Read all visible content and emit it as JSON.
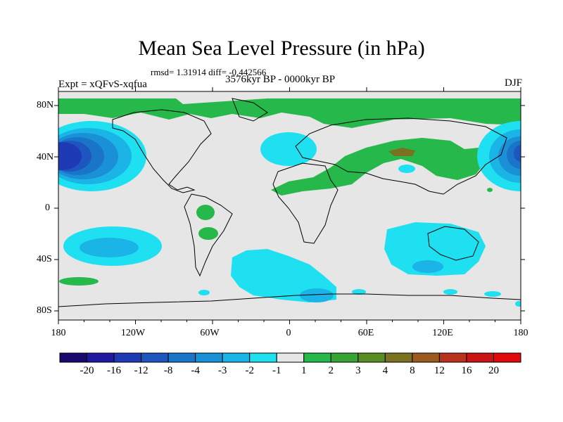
{
  "title": "Mean Sea Level Pressure (in hPa)",
  "stats": "rmsd= 1.31914 diff= -0.442566",
  "experiment": "Expt = xQFvS-xqfua",
  "period": "3576kyr BP - 0000kyr BP",
  "season": "DJF",
  "lat_labels": [
    "80N",
    "40N",
    "0",
    "40S",
    "80S"
  ],
  "lon_labels": [
    "180",
    "120W",
    "60W",
    "0",
    "60E",
    "120E",
    "180"
  ],
  "colorbar": {
    "labels": [
      "-20",
      "-16",
      "-12",
      "-8",
      "-4",
      "-3",
      "-2",
      "-1",
      "1",
      "2",
      "3",
      "4",
      "8",
      "12",
      "16",
      "20"
    ],
    "colors": [
      "#1a0a6e",
      "#1f1aa0",
      "#1e3ab4",
      "#1c56be",
      "#1a74c8",
      "#1a90d6",
      "#1ab4e6",
      "#1ee0f0",
      "#e6e6e6",
      "#26b84a",
      "#38a432",
      "#5a8c24",
      "#7a7220",
      "#9c5a1e",
      "#b8321c",
      "#c81414",
      "#e00a0a"
    ]
  },
  "colors": {
    "background": "#e6e6e6",
    "light_blue": "#1ee0f0",
    "mid_blue": "#1ab4e6",
    "blue": "#1a90d6",
    "dark_blue": "#1c56be",
    "deep_blue": "#1e3ab4",
    "green": "#26b84a",
    "brown": "#7a7220"
  }
}
